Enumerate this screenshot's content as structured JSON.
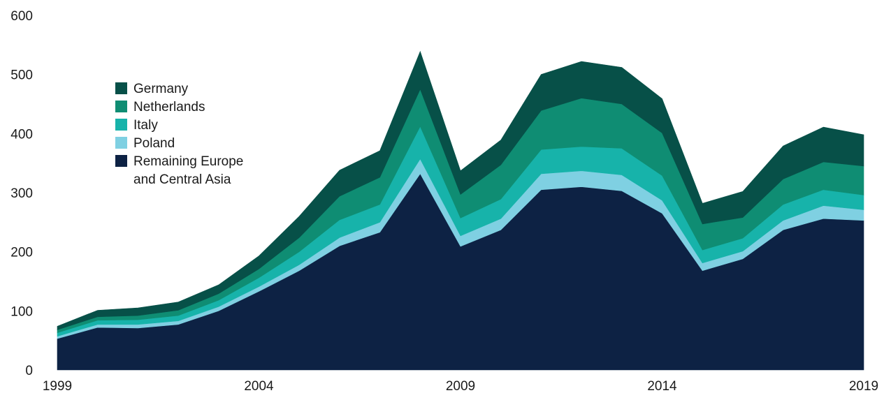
{
  "chart_data": {
    "type": "area",
    "stacked": true,
    "title": "",
    "xlabel": "",
    "ylabel": "",
    "ylim": [
      0,
      600
    ],
    "y_ticks": [
      0,
      100,
      200,
      300,
      400,
      500,
      600
    ],
    "x_ticks": [
      1999,
      2004,
      2009,
      2014,
      2019
    ],
    "grid": false,
    "legend": {
      "position": "upper-left",
      "items": [
        "Germany",
        "Netherlands",
        "Italy",
        "Poland",
        "Remaining Europe and Central Asia"
      ],
      "lines": {
        "Germany": [
          "Germany"
        ],
        "Netherlands": [
          "Netherlands"
        ],
        "Italy": [
          "Italy"
        ],
        "Poland": [
          "Poland"
        ],
        "Remaining Europe and Central Asia": [
          "Remaining Europe",
          "and Central Asia"
        ]
      }
    },
    "x": [
      1999,
      2000,
      2001,
      2002,
      2003,
      2004,
      2005,
      2006,
      2007,
      2008,
      2009,
      2010,
      2011,
      2012,
      2013,
      2014,
      2015,
      2016,
      2017,
      2018,
      2019
    ],
    "series": [
      {
        "name": "Remaining Europe and Central Asia",
        "color": "#0d2244",
        "values": [
          53,
          72,
          71,
          77,
          100,
          133,
          168,
          210,
          233,
          332,
          209,
          237,
          305,
          310,
          303,
          265,
          168,
          188,
          237,
          256,
          253
        ]
      },
      {
        "name": "Poland",
        "color": "#7fd0e2",
        "values": [
          4,
          5,
          6,
          6,
          7,
          8,
          10,
          14,
          17,
          25,
          18,
          19,
          27,
          27,
          27,
          22,
          13,
          13,
          16,
          22,
          18
        ]
      },
      {
        "name": "Italy",
        "color": "#17b3aa",
        "values": [
          6,
          7,
          8,
          9,
          11,
          15,
          22,
          30,
          30,
          55,
          30,
          33,
          41,
          41,
          45,
          42,
          22,
          22,
          27,
          27,
          25
        ]
      },
      {
        "name": "Netherlands",
        "color": "#0f8d73",
        "values": [
          5,
          6,
          7,
          9,
          11,
          15,
          24,
          40,
          46,
          63,
          40,
          58,
          66,
          82,
          75,
          72,
          44,
          35,
          43,
          47,
          49
        ]
      },
      {
        "name": "Germany",
        "color": "#075048",
        "values": [
          6,
          11,
          13,
          14,
          15,
          22,
          36,
          44,
          45,
          64,
          40,
          42,
          61,
          62,
          62,
          58,
          35,
          44,
          56,
          59,
          53
        ]
      }
    ]
  }
}
